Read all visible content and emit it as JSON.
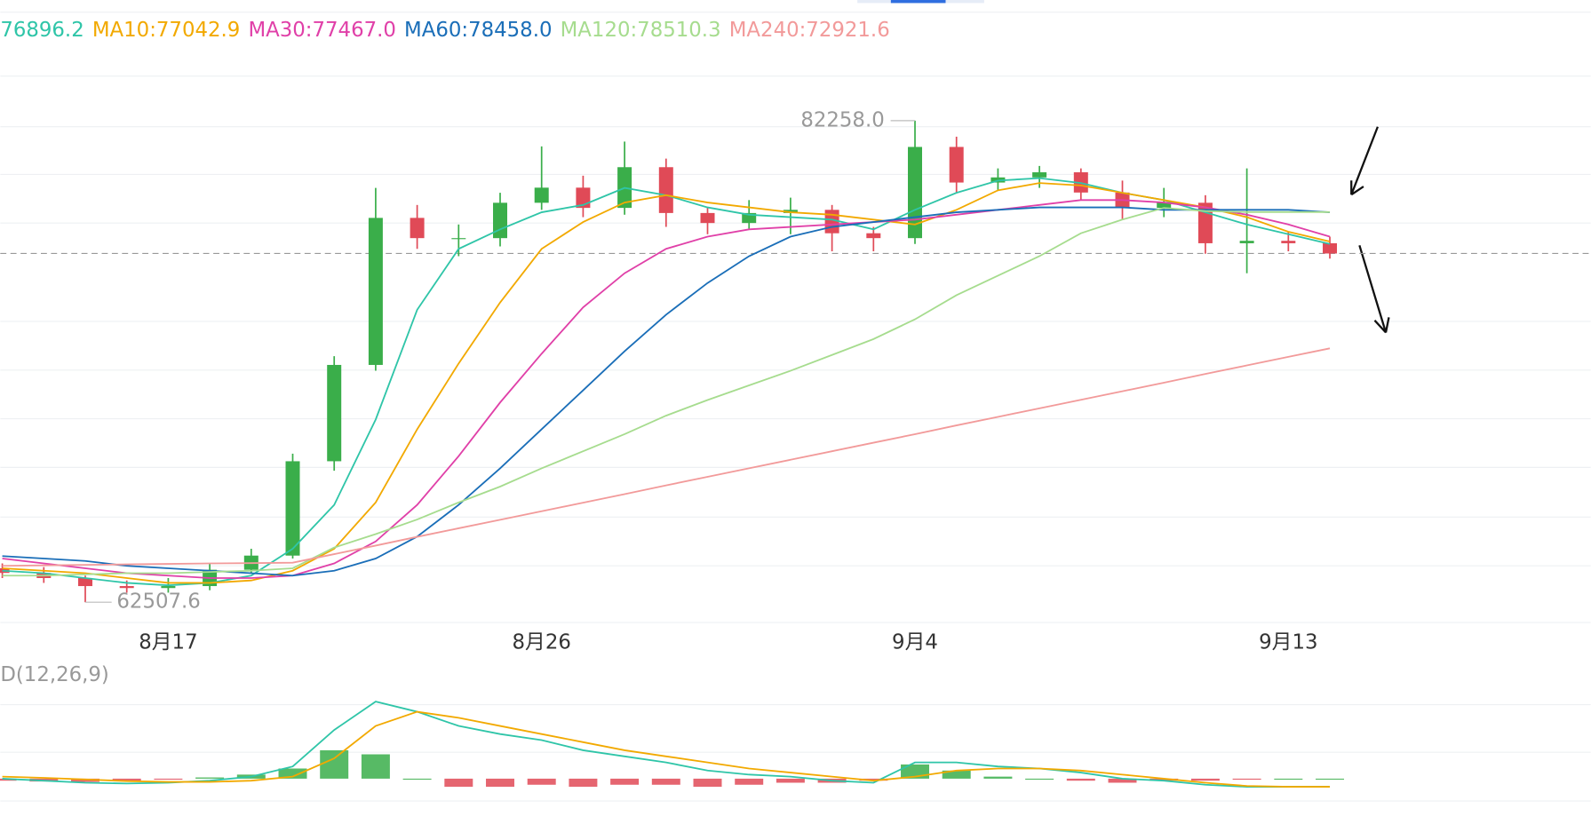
{
  "chart_data": [
    {
      "type": "candlestick",
      "categories": [
        null,
        null,
        null,
        null,
        "8月17",
        null,
        null,
        null,
        null,
        null,
        null,
        null,
        null,
        "8月26",
        null,
        null,
        null,
        null,
        null,
        null,
        null,
        null,
        "9月4",
        null,
        null,
        null,
        null,
        null,
        null,
        null,
        null,
        "9月13",
        null
      ],
      "open": [
        63900,
        63710,
        63500,
        63170,
        63090,
        63170,
        63840,
        64420,
        68290,
        72240,
        78270,
        77440,
        77440,
        78890,
        79510,
        78680,
        80350,
        78470,
        78060,
        78470,
        78600,
        77640,
        77440,
        81180,
        79720,
        79930,
        80140,
        79310,
        78680,
        78890,
        77230,
        77330,
        77230
      ],
      "high": [
        64100,
        63950,
        63600,
        63400,
        63500,
        64100,
        64700,
        68600,
        72600,
        79500,
        78800,
        78000,
        79300,
        81200,
        80000,
        81400,
        80700,
        78700,
        79000,
        79100,
        78800,
        77900,
        82258,
        81600,
        80300,
        80400,
        80300,
        79800,
        79500,
        79200,
        80300,
        77700,
        77500
      ],
      "low": [
        63500,
        63300,
        62507.6,
        62900,
        62900,
        63000,
        63700,
        64300,
        67900,
        72000,
        77000,
        76700,
        77100,
        78600,
        78300,
        78400,
        77900,
        77600,
        77800,
        77600,
        76900,
        76900,
        77200,
        79300,
        79400,
        79500,
        79000,
        78200,
        78300,
        76800,
        76000,
        76900,
        76600
      ],
      "close": [
        63710,
        63500,
        63170,
        63090,
        63170,
        63840,
        64420,
        68290,
        72240,
        78270,
        77440,
        77440,
        78890,
        79510,
        78680,
        80350,
        78470,
        78060,
        78470,
        78600,
        77640,
        77440,
        81180,
        79720,
        79930,
        80140,
        79310,
        78680,
        78890,
        77230,
        77330,
        77230,
        76810
      ],
      "up_color": "#3aae4a",
      "down_color": "#e04a57",
      "series": [
        {
          "name": "76896.2",
          "color": "#2fc5a8",
          "values": [
            63800,
            63700,
            63500,
            63300,
            63200,
            63300,
            63600,
            64700,
            66500,
            70000,
            74500,
            77000,
            77800,
            78500,
            78800,
            79500,
            79200,
            78700,
            78400,
            78300,
            78200,
            77800,
            78600,
            79300,
            79800,
            79900,
            79700,
            79300,
            79000,
            78500,
            78000,
            77600,
            77200
          ]
        },
        {
          "name": "MA10:77042.9",
          "color": "#f2a900",
          "values": [
            63900,
            63800,
            63700,
            63500,
            63300,
            63300,
            63400,
            63800,
            64700,
            66600,
            69600,
            72300,
            74800,
            77000,
            78100,
            78900,
            79200,
            78900,
            78700,
            78500,
            78400,
            78200,
            78000,
            78600,
            79400,
            79700,
            79600,
            79300,
            79000,
            78700,
            78300,
            77700,
            77300
          ]
        },
        {
          "name": "MA30:77467.0",
          "color": "#e040a8",
          "values": [
            64300,
            64100,
            63900,
            63700,
            63600,
            63500,
            63500,
            63600,
            64100,
            65000,
            66500,
            68500,
            70700,
            72700,
            74600,
            76000,
            77000,
            77500,
            77800,
            77900,
            78000,
            78100,
            78200,
            78400,
            78600,
            78800,
            79000,
            79000,
            78900,
            78700,
            78400,
            78000,
            77500
          ]
        },
        {
          "name": "MA60:78458.0",
          "color": "#1a6eb8",
          "values": [
            64400,
            64300,
            64200,
            64000,
            63900,
            63800,
            63700,
            63600,
            63800,
            64300,
            65200,
            66500,
            68000,
            69600,
            71200,
            72800,
            74300,
            75600,
            76700,
            77500,
            77900,
            78100,
            78300,
            78500,
            78600,
            78700,
            78700,
            78700,
            78600,
            78600,
            78600,
            78600,
            78500
          ]
        },
        {
          "name": "MA120:78510.3",
          "color": "#a6dc8e",
          "values": [
            63600,
            63600,
            63650,
            63700,
            63700,
            63750,
            63800,
            63900,
            64750,
            65300,
            65900,
            66600,
            67250,
            68000,
            68700,
            69400,
            70160,
            70800,
            71400,
            72000,
            72650,
            73300,
            74110,
            75100,
            75900,
            76700,
            77640,
            78200,
            78680,
            78550,
            78510,
            78510,
            78510
          ]
        },
        {
          "name": "MA240:72921.6",
          "color": "#f29a9a",
          "values": [
            64000,
            64020,
            64040,
            64060,
            64080,
            64100,
            64110,
            64130,
            64480,
            64830,
            65190,
            65540,
            65890,
            66240,
            66590,
            66940,
            67300,
            67650,
            68000,
            68350,
            68700,
            69050,
            69400,
            69760,
            70110,
            70460,
            70810,
            71160,
            71510,
            71870,
            72220,
            72570,
            72920
          ]
        }
      ],
      "annotations": [
        {
          "value": 82258,
          "label": "82258.0"
        },
        62507.6
      ],
      "ylim": [
        61634,
        84711
      ]
    },
    {
      "type": "macd",
      "title": "D(12,26,9)",
      "histogram": [
        -50,
        -70,
        -80,
        -60,
        -20,
        30,
        100,
        250,
        700,
        600,
        0,
        -200,
        -200,
        -150,
        -200,
        -150,
        -150,
        -200,
        -150,
        -100,
        -100,
        -50,
        350,
        200,
        50,
        0,
        -50,
        -100,
        -50,
        -50,
        -20,
        0,
        0
      ],
      "up_color": "#3aae4a",
      "down_color": "#e04a57",
      "series": [
        {
          "color": "#2fc5a8",
          "values": [
            0,
            -50,
            -100,
            -120,
            -100,
            -50,
            50,
            300,
            1200,
            1900,
            1650,
            1300,
            1100,
            950,
            700,
            550,
            400,
            200,
            100,
            50,
            -50,
            -100,
            400,
            400,
            300,
            250,
            150,
            0,
            -50,
            -150,
            -200,
            -200,
            -200
          ]
        },
        {
          "color": "#f2a900",
          "values": [
            50,
            20,
            -20,
            -60,
            -80,
            -80,
            -50,
            50,
            500,
            1300,
            1650,
            1500,
            1300,
            1100,
            900,
            700,
            550,
            400,
            250,
            150,
            50,
            -50,
            50,
            200,
            250,
            250,
            200,
            100,
            0,
            -100,
            -180,
            -200,
            -200
          ]
        }
      ],
      "ylim": [
        -800,
        2700
      ]
    }
  ]
}
